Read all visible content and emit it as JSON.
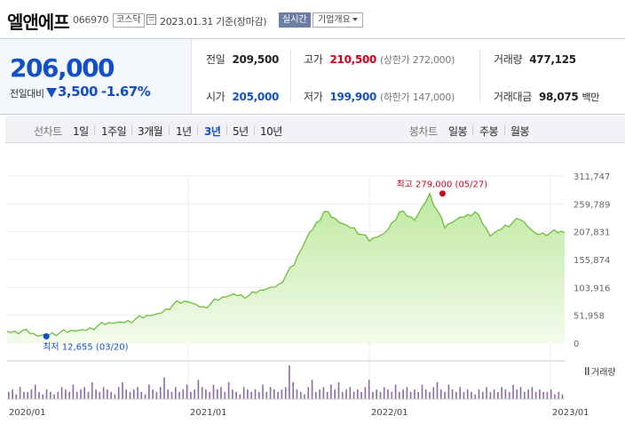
{
  "header": {
    "name": "엘앤에프",
    "code": "066970",
    "market": "코스닥",
    "date_text": "2023.01.31  기준(장마감)",
    "realtime_label": "실시간",
    "company_label": "기업개요"
  },
  "price": {
    "current": "206,000",
    "diff_label": "전일대비",
    "diff_value": "3,500",
    "diff_rate": "-1.67%"
  },
  "stats": {
    "prev_close": {
      "label": "전일",
      "value": "209,500"
    },
    "high": {
      "label": "고가",
      "value": "210,500",
      "limit": "(상한가 272,000)"
    },
    "volume": {
      "label": "거래량",
      "value": "477,125"
    },
    "open": {
      "label": "시가",
      "value": "205,000"
    },
    "low": {
      "label": "저가",
      "value": "199,900",
      "limit": "(하한가 147,000)"
    },
    "amount": {
      "label": "거래대금",
      "value": "98,075",
      "unit": "백만"
    }
  },
  "periods": {
    "line_label": "선차트",
    "line_options": [
      "1일",
      "1주일",
      "3개월",
      "1년",
      "3년",
      "5년",
      "10년"
    ],
    "selected": "3년",
    "candle_label": "봉차트",
    "candle_options": [
      "일봉",
      "주봉",
      "월봉"
    ]
  },
  "colors": {
    "up": "#d0011b",
    "down": "#1350c7",
    "line": "#6bbf3a",
    "volume": "#8b6aa6"
  },
  "chart_data": {
    "type": "area",
    "y_ticks": [
      "311,747",
      "259,789",
      "207,831",
      "155,874",
      "103,916",
      "51,958",
      "0"
    ],
    "ylim": [
      0,
      311747
    ],
    "x_ticks": [
      "2020/01",
      "2021/01",
      "2022/01",
      "2023/01"
    ],
    "max_label": "최고 279,000 (05/27)",
    "min_label": "최저 12,655 (03/20)",
    "max": {
      "date": "2022/05/27",
      "value": 279000
    },
    "min": {
      "date": "2020/03/20",
      "value": 12655
    },
    "volume_label": "거래량",
    "series": [
      {
        "x": [
          "2020/01",
          "2020/02",
          "2020/03",
          "2020/04",
          "2020/05",
          "2020/06",
          "2020/07",
          "2020/08",
          "2020/09",
          "2020/10",
          "2020/11",
          "2020/12",
          "2021/01",
          "2021/02",
          "2021/03",
          "2021/04",
          "2021/05",
          "2021/06",
          "2021/07",
          "2021/08",
          "2021/09",
          "2021/10",
          "2021/11",
          "2021/12",
          "2022/01",
          "2022/02",
          "2022/03",
          "2022/04",
          "2022/05",
          "2022/06",
          "2022/07",
          "2022/08",
          "2022/09",
          "2022/10",
          "2022/11",
          "2022/12",
          "2023/01"
        ],
        "values": [
          22000,
          23000,
          13000,
          19000,
          20000,
          25000,
          32000,
          37000,
          42000,
          47000,
          55000,
          72000,
          77000,
          68000,
          80000,
          92000,
          88000,
          99000,
          110000,
          145000,
          205000,
          245000,
          225000,
          215000,
          190000,
          205000,
          245000,
          229000,
          279000,
          215000,
          235000,
          245000,
          200000,
          220000,
          230000,
          205000,
          206000
        ]
      }
    ],
    "volume_bars": [
      3,
      4,
      2,
      5,
      3,
      3,
      4,
      6,
      3,
      2,
      4,
      3,
      2,
      3,
      5,
      4,
      3,
      6,
      3,
      4,
      5,
      3,
      7,
      4,
      3,
      5,
      4,
      3,
      2,
      5,
      7,
      4,
      3,
      4,
      5,
      3,
      2,
      6,
      4,
      3,
      5,
      9,
      4,
      3,
      5,
      3,
      4,
      6,
      3,
      4,
      8,
      5,
      4,
      3,
      6,
      4,
      5,
      3,
      7,
      4,
      3,
      2,
      5,
      4,
      3,
      4,
      3,
      6,
      3,
      5,
      4,
      3,
      4,
      5,
      14,
      7,
      4,
      3,
      2,
      5,
      8,
      3,
      4,
      5,
      3,
      6,
      4,
      7,
      3,
      4,
      5,
      3,
      4,
      3,
      5,
      8,
      3,
      4,
      3,
      5,
      4,
      3,
      6,
      3,
      4,
      5,
      3,
      4,
      3,
      6,
      4,
      3,
      5,
      7,
      4,
      3,
      6,
      4,
      3,
      5,
      3,
      4,
      3,
      2,
      4,
      3,
      5,
      3,
      4,
      3,
      5,
      4,
      3,
      6,
      4,
      5,
      3,
      4,
      5,
      3,
      4,
      3,
      3,
      4,
      2,
      3,
      2
    ]
  }
}
